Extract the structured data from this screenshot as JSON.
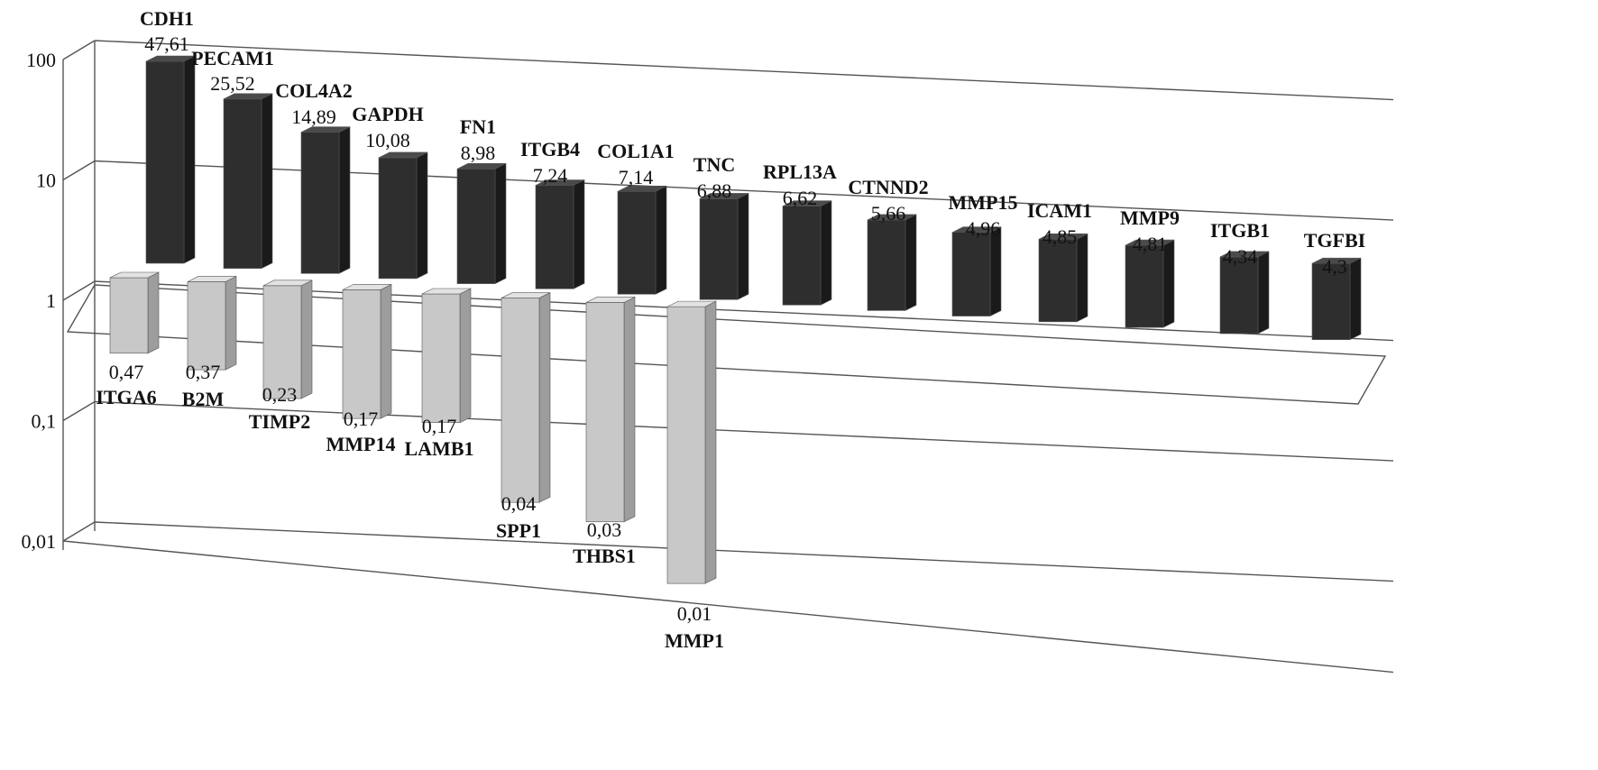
{
  "chart_data": {
    "type": "bar",
    "chart_style": "3d-column",
    "scale": "log",
    "ylim": [
      0.01,
      100
    ],
    "yticks": [
      {
        "value": 100,
        "label": "100"
      },
      {
        "value": 10,
        "label": "10"
      },
      {
        "value": 1,
        "label": "1"
      },
      {
        "value": 0.1,
        "label": "0,1"
      },
      {
        "value": 0.01,
        "label": "0,01"
      }
    ],
    "grid": true,
    "legend": "none",
    "colors": {
      "up": "#2e2e2e",
      "down": "#c8c8c8",
      "grid": "#555555"
    },
    "bars": [
      {
        "name": "ITGA6",
        "value": 0.47,
        "label": "0,47",
        "group": "down"
      },
      {
        "name": "CDH1",
        "value": 47.61,
        "label": "47,61",
        "group": "up"
      },
      {
        "name": "B2M",
        "value": 0.37,
        "label": "0,37",
        "group": "down"
      },
      {
        "name": "PECAM1",
        "value": 25.52,
        "label": "25,52",
        "group": "up"
      },
      {
        "name": "TIMP2",
        "value": 0.23,
        "label": "0,23",
        "group": "down"
      },
      {
        "name": "COL4A2",
        "value": 14.89,
        "label": "14,89",
        "group": "up"
      },
      {
        "name": "MMP14",
        "value": 0.17,
        "label": "0,17",
        "group": "down"
      },
      {
        "name": "GAPDH",
        "value": 10.08,
        "label": "10,08",
        "group": "up"
      },
      {
        "name": "LAMB1",
        "value": 0.17,
        "label": "0,17",
        "group": "down"
      },
      {
        "name": "FN1",
        "value": 8.98,
        "label": "8,98",
        "group": "up"
      },
      {
        "name": "SPP1",
        "value": 0.04,
        "label": "0,04",
        "group": "down"
      },
      {
        "name": "ITGB4",
        "value": 7.24,
        "label": "7,24",
        "group": "up"
      },
      {
        "name": "THBS1",
        "value": 0.03,
        "label": "0,03",
        "group": "down"
      },
      {
        "name": "COL1A1",
        "value": 7.14,
        "label": "7,14",
        "group": "up"
      },
      {
        "name": "MMP1",
        "value": 0.01,
        "label": "0,01",
        "group": "down"
      },
      {
        "name": "TNC",
        "value": 6.88,
        "label": "6,88",
        "group": "up"
      },
      {
        "name": "RPL13A",
        "value": 6.62,
        "label": "6,62",
        "group": "up"
      },
      {
        "name": "CTNND2",
        "value": 5.66,
        "label": "5,66",
        "group": "up"
      },
      {
        "name": "MMP15",
        "value": 4.96,
        "label": "4,96",
        "group": "up"
      },
      {
        "name": "ICAM1",
        "value": 4.85,
        "label": "4,85",
        "group": "up"
      },
      {
        "name": "MMP9",
        "value": 4.81,
        "label": "4,81",
        "group": "up"
      },
      {
        "name": "ITGB1",
        "value": 4.34,
        "label": "4,34",
        "group": "up"
      },
      {
        "name": "TGFBI",
        "value": 4.3,
        "label": "4,3",
        "group": "up"
      }
    ]
  }
}
